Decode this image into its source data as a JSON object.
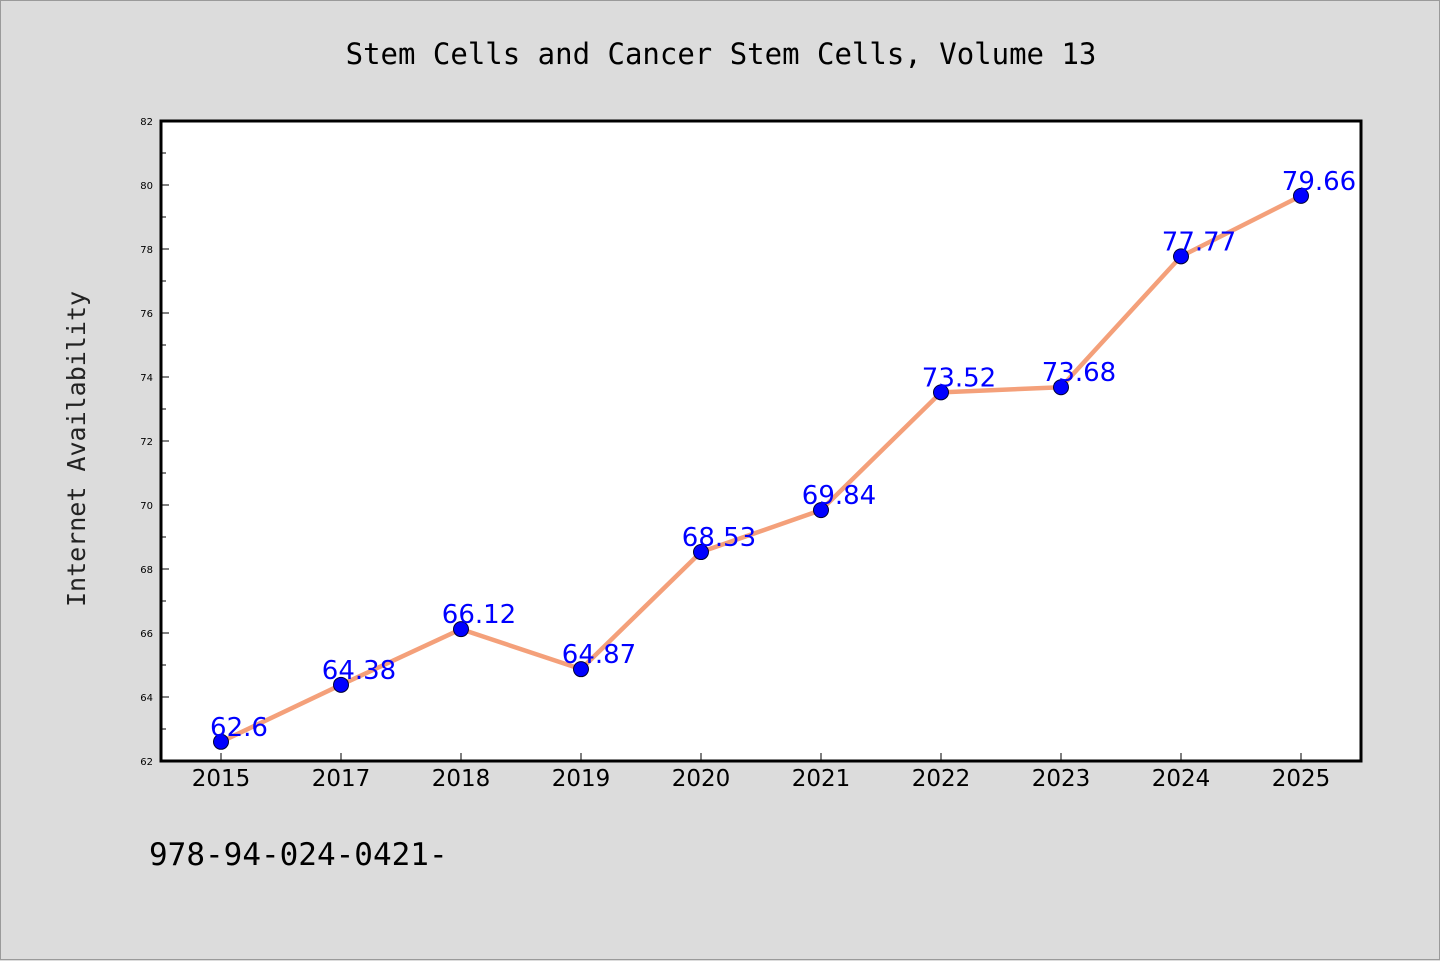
{
  "chart_data": {
    "type": "line",
    "title": "Stem Cells and Cancer Stem Cells, Volume 13",
    "xlabel": "",
    "ylabel": "Internet Availability",
    "categories": [
      "2015",
      "2017",
      "2018",
      "2019",
      "2020",
      "2021",
      "2022",
      "2023",
      "2024",
      "2025"
    ],
    "series": [
      {
        "values": [
          62.6,
          64.38,
          66.12,
          64.87,
          68.53,
          69.84,
          73.52,
          73.68,
          77.77,
          79.66
        ],
        "data_labels": [
          "62.6",
          "64.38",
          "66.12",
          "64.87",
          "68.53",
          "69.84",
          "73.52",
          "73.68",
          "77.77",
          "79.66"
        ],
        "line_color": "#f4a07a",
        "marker_color": "#0000ff"
      }
    ],
    "ylim": [
      62,
      82
    ],
    "yticks": [
      62,
      64,
      66,
      68,
      70,
      72,
      74,
      76,
      78,
      80,
      82
    ],
    "grid": false,
    "legend": "none"
  },
  "footer": {
    "text": "978-94-024-0421-"
  },
  "colors": {
    "background": "#dcdcdc",
    "plot_area": "#ffffff",
    "axis": "#000000"
  }
}
